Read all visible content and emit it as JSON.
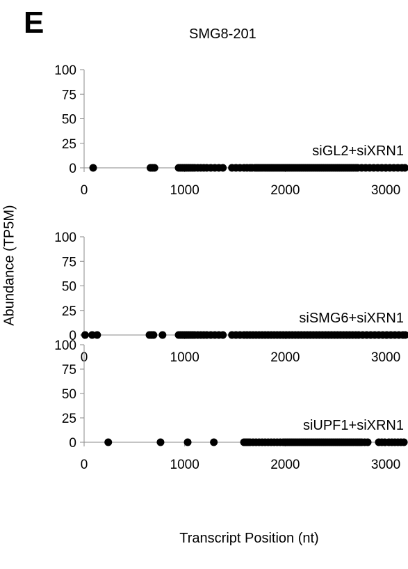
{
  "panel_letter": "E",
  "chart_data": {
    "type": "scatter",
    "title": "SMG8-201",
    "ylabel": "Abundance (TP5M)",
    "xlabel": "Transcript Position (nt)",
    "xlim": [
      0,
      3200
    ],
    "x_ticks": [
      0,
      1000,
      2000,
      3000
    ],
    "ylim": [
      0,
      100
    ],
    "y_ticks": [
      0,
      25,
      50,
      75,
      100
    ],
    "panels": [
      {
        "label": "siGL2+siXRN1",
        "x": [
          90,
          660,
          680,
          700,
          940,
          960,
          980,
          1000,
          1020,
          1040,
          1060,
          1080,
          1100,
          1130,
          1160,
          1190,
          1220,
          1260,
          1300,
          1340,
          1380,
          1470,
          1510,
          1550,
          1590,
          1620,
          1650,
          1670,
          1700,
          1720,
          1740,
          1760,
          1780,
          1800,
          1820,
          1840,
          1860,
          1880,
          1900,
          1920,
          1940,
          1960,
          1980,
          2000,
          2020,
          2040,
          2060,
          2080,
          2100,
          2120,
          2140,
          2160,
          2180,
          2200,
          2220,
          2240,
          2260,
          2280,
          2300,
          2320,
          2340,
          2360,
          2380,
          2400,
          2420,
          2440,
          2460,
          2480,
          2500,
          2520,
          2540,
          2560,
          2580,
          2600,
          2620,
          2640,
          2660,
          2680,
          2700,
          2720,
          2760,
          2800,
          2840,
          2880,
          2920,
          2960,
          3000,
          3040,
          3080,
          3120,
          3160,
          3190
        ],
        "y": [
          0,
          0,
          0,
          0,
          0,
          0,
          0,
          0,
          0,
          0,
          0,
          0,
          0,
          0,
          0,
          0,
          0,
          0,
          0,
          0,
          0,
          0,
          0,
          0,
          0,
          0,
          0,
          0,
          0,
          0,
          0,
          0,
          0,
          0,
          0,
          0,
          0,
          0,
          0,
          0,
          0,
          0,
          0,
          0,
          0,
          0,
          0,
          0,
          0,
          0,
          0,
          0,
          0,
          0,
          0,
          0,
          0,
          0,
          0,
          0,
          0,
          0,
          0,
          0,
          0,
          0,
          0,
          0,
          0,
          0,
          0,
          0,
          0,
          0,
          0,
          0,
          0,
          0,
          0,
          0,
          0,
          0,
          0,
          0,
          0,
          0,
          0,
          0,
          0,
          0,
          0,
          0
        ]
      },
      {
        "label": "siSMG6+siXRN1",
        "x": [
          10,
          80,
          130,
          650,
          670,
          690,
          780,
          940,
          960,
          980,
          1000,
          1020,
          1040,
          1060,
          1080,
          1100,
          1130,
          1160,
          1190,
          1220,
          1260,
          1300,
          1340,
          1380,
          1470,
          1510,
          1550,
          1590,
          1620,
          1650,
          1680,
          1710,
          1740,
          1770,
          1800,
          1830,
          1860,
          1890,
          1920,
          1950,
          1980,
          2010,
          2040,
          2070,
          2100,
          2130,
          2160,
          2190,
          2220,
          2250,
          2280,
          2310,
          2340,
          2370,
          2400,
          2430,
          2460,
          2490,
          2520,
          2550,
          2580,
          2610,
          2640,
          2670,
          2700,
          2730,
          2770,
          2810,
          2850,
          2890,
          2930,
          2970,
          3010,
          3050,
          3090,
          3130,
          3170,
          3195
        ],
        "y": [
          0,
          0,
          0,
          0,
          0,
          0,
          0,
          0,
          0,
          0,
          0,
          0,
          0,
          0,
          0,
          0,
          0,
          0,
          0,
          0,
          0,
          0,
          0,
          0,
          0,
          0,
          0,
          0,
          0,
          0,
          0,
          0,
          0,
          0,
          0,
          0,
          0,
          0,
          0,
          0,
          0,
          0,
          0,
          0,
          0,
          0,
          0,
          0,
          0,
          0,
          0,
          0,
          0,
          0,
          0,
          0,
          0,
          0,
          0,
          0,
          0,
          0,
          0,
          0,
          0,
          0,
          0,
          0,
          0,
          0,
          0,
          0,
          0,
          0,
          0,
          0,
          0,
          0
        ]
      },
      {
        "label": "siUPF1+siXRN1",
        "x": [
          240,
          760,
          1030,
          1290,
          1590,
          1610,
          1630,
          1650,
          1680,
          1710,
          1740,
          1770,
          1800,
          1830,
          1860,
          1890,
          1920,
          1950,
          1980,
          2000,
          2020,
          2040,
          2060,
          2080,
          2100,
          2120,
          2140,
          2160,
          2180,
          2200,
          2220,
          2240,
          2260,
          2280,
          2300,
          2320,
          2340,
          2360,
          2380,
          2400,
          2420,
          2440,
          2460,
          2480,
          2500,
          2520,
          2540,
          2560,
          2580,
          2600,
          2620,
          2640,
          2660,
          2680,
          2700,
          2720,
          2740,
          2760,
          2790,
          2820,
          2930,
          2960,
          2990,
          3030,
          3060,
          3090,
          3120,
          3150,
          3180
        ],
        "y": [
          0,
          0,
          0,
          0,
          0,
          0,
          0,
          0,
          0,
          0,
          0,
          0,
          0,
          0,
          0,
          0,
          0,
          0,
          0,
          0,
          0,
          0,
          0,
          0,
          0,
          0,
          0,
          0,
          0,
          0,
          0,
          0,
          0,
          0,
          0,
          0,
          0,
          0,
          0,
          0,
          0,
          0,
          0,
          0,
          0,
          0,
          0,
          0,
          0,
          0,
          0,
          0,
          0,
          0,
          0,
          0,
          0,
          0,
          0,
          0,
          0,
          0,
          0,
          0,
          0,
          0,
          0,
          0,
          0
        ]
      }
    ]
  }
}
